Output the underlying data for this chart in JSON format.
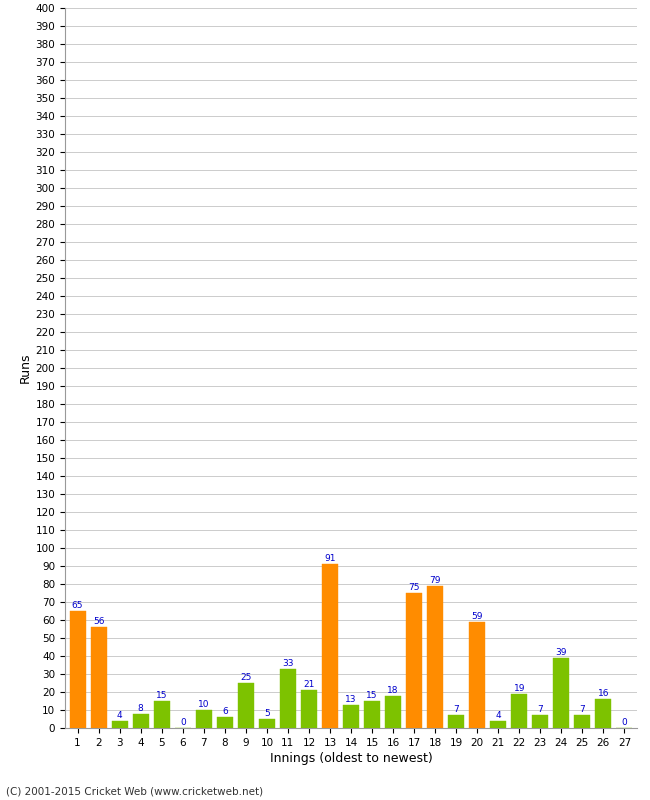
{
  "innings": [
    1,
    2,
    3,
    4,
    5,
    6,
    7,
    8,
    9,
    10,
    11,
    12,
    13,
    14,
    15,
    16,
    17,
    18,
    19,
    20,
    21,
    22,
    23,
    24,
    25,
    26,
    27
  ],
  "values": [
    65,
    56,
    4,
    8,
    15,
    0,
    10,
    6,
    25,
    5,
    33,
    21,
    91,
    13,
    15,
    18,
    75,
    79,
    7,
    59,
    4,
    19,
    7,
    39,
    7,
    16,
    0
  ],
  "colors": [
    "#ff8c00",
    "#ff8c00",
    "#7dc200",
    "#7dc200",
    "#7dc200",
    "#7dc200",
    "#7dc200",
    "#7dc200",
    "#7dc200",
    "#7dc200",
    "#7dc200",
    "#7dc200",
    "#ff8c00",
    "#7dc200",
    "#7dc200",
    "#7dc200",
    "#ff8c00",
    "#ff8c00",
    "#7dc200",
    "#ff8c00",
    "#7dc200",
    "#7dc200",
    "#7dc200",
    "#7dc200",
    "#7dc200",
    "#7dc200",
    "#7dc200"
  ],
  "ylabel": "Runs",
  "xlabel": "Innings (oldest to newest)",
  "ylim": [
    0,
    400
  ],
  "yticks": [
    0,
    10,
    20,
    30,
    40,
    50,
    60,
    70,
    80,
    90,
    100,
    110,
    120,
    130,
    140,
    150,
    160,
    170,
    180,
    190,
    200,
    210,
    220,
    230,
    240,
    250,
    260,
    270,
    280,
    290,
    300,
    310,
    320,
    330,
    340,
    350,
    360,
    370,
    380,
    390,
    400
  ],
  "footer": "(C) 2001-2015 Cricket Web (www.cricketweb.net)",
  "label_color": "#0000cc",
  "background_color": "#ffffff",
  "grid_color": "#cccccc",
  "bar_width": 0.75,
  "tick_fontsize": 7.5,
  "label_fontsize": 6.5
}
